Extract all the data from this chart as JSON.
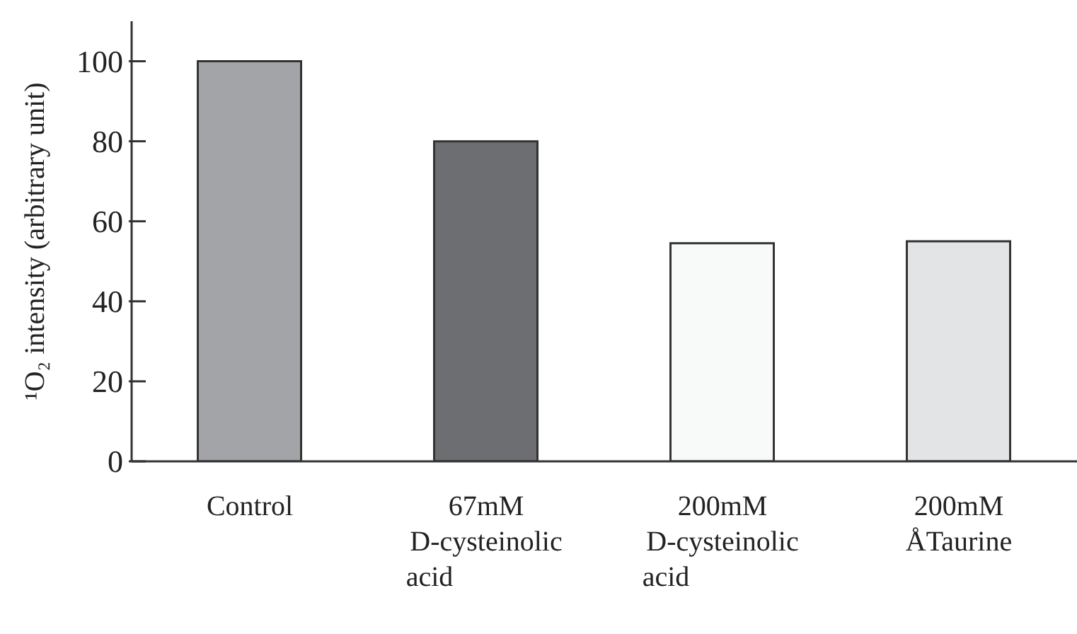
{
  "chart_data": {
    "type": "bar",
    "ylabel": "¹O₂ intensity (arbitrary unit)",
    "categories": [
      "Control",
      "67mM\nD-cysteinolic\nacid",
      "200mM\nD-cysteinolic\nacid",
      "200mM\nÅTaurine"
    ],
    "values": [
      100,
      80,
      54.5,
      55
    ],
    "colors": [
      "#a3a4a8",
      "#6d6e72",
      "#f8f9f9",
      "#e3e4e5"
    ],
    "ylim": [
      0,
      110
    ],
    "yticks": [
      0,
      20,
      40,
      60,
      80,
      100
    ],
    "grid": false,
    "legend": false
  }
}
